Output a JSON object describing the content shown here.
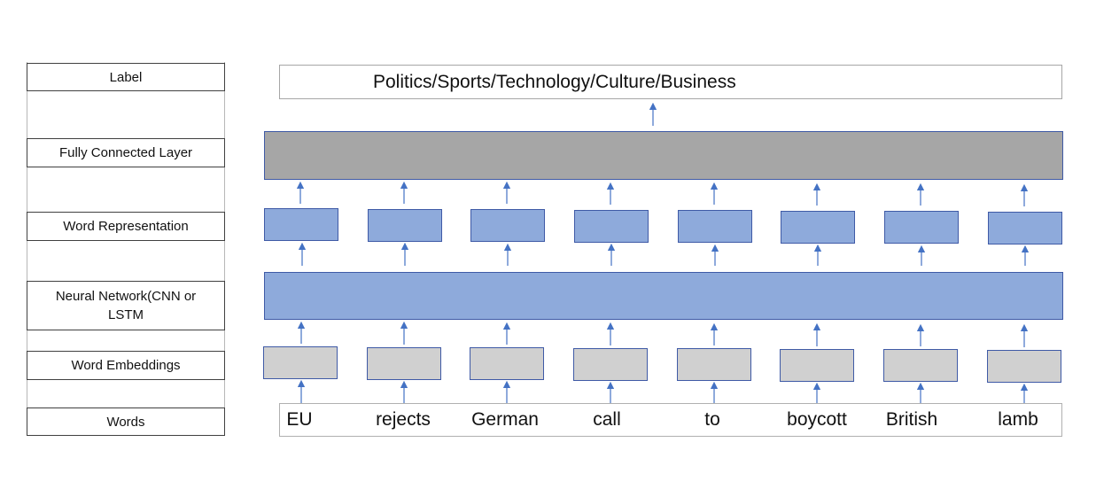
{
  "side_labels": {
    "label": "Label",
    "fully_connected": "Fully Connected Layer",
    "word_representation": "Word Representation",
    "neural_network": "Neural Network(CNN or LSTM",
    "word_embeddings": "Word Embeddings",
    "words": "Words"
  },
  "output_label": "Politics/Sports/Technology/Culture/Business",
  "words": [
    "EU",
    "rejects",
    "German",
    "call",
    "to",
    "boycott",
    "British",
    "lamb"
  ],
  "colors": {
    "fully_connected_fill": "#a6a6a6",
    "neural_network_fill": "#8eaadb",
    "representation_fill": "#8eaadb",
    "embedding_fill": "#d0d0d0",
    "outline_blue": "#3f5aa6",
    "arrow_blue": "#4472c4"
  }
}
